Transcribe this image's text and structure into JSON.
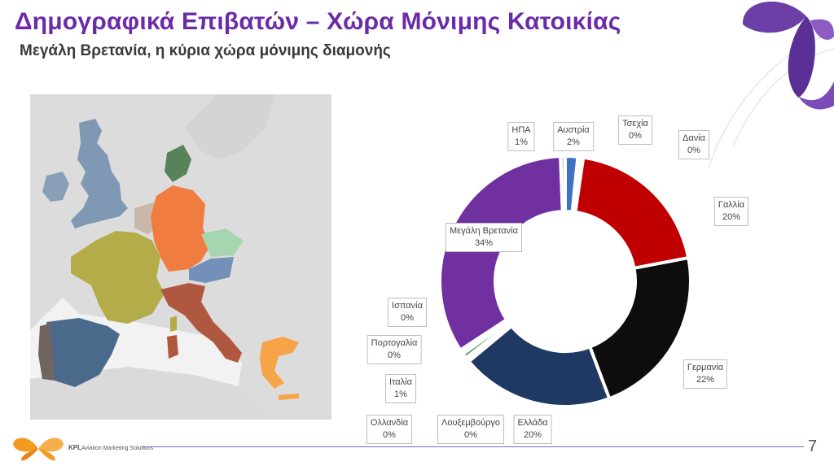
{
  "title": "Δημογραφικά Επιβατών – Χώρα Μόνιμης Κατοικίας",
  "subtitle": "Μεγάλη Βρετανία, η κύρια χώρα μόνιμης διαμονής",
  "footer": {
    "brand_bold": "KPL",
    "brand_rest": "Aviation Marketing Solutions",
    "page_number": "7"
  },
  "colors": {
    "title": "#6b2aa8",
    "accent_line": "#6b6bd6",
    "logo": "#f39a1f"
  },
  "map": {
    "countries": [
      {
        "name": "Μεγάλη Βρετανία",
        "color": "#7f98b3"
      },
      {
        "name": "Γαλλία",
        "color": "#b4ac48"
      },
      {
        "name": "Γερμανία",
        "color": "#f07c3f"
      },
      {
        "name": "Ισπανία",
        "color": "#4b6a8b"
      },
      {
        "name": "Πορτογαλία",
        "color": "#706461"
      },
      {
        "name": "Ιταλία",
        "color": "#b0583f"
      },
      {
        "name": "Ελλάδα",
        "color": "#f7a347"
      },
      {
        "name": "Τσεχία",
        "color": "#a6d6b0"
      },
      {
        "name": "Αυστρία",
        "color": "#7390b8"
      },
      {
        "name": "Δανία",
        "color": "#57825a"
      },
      {
        "name": "Ολλανδία",
        "color": "#c9b8aa"
      }
    ]
  },
  "chart_data": {
    "type": "pie",
    "donut": true,
    "title": "",
    "slices": [
      {
        "label": "Αυστρία",
        "value_text": "2%",
        "value": 1.6,
        "color": "#3f72c4"
      },
      {
        "label": "Τσεχία",
        "value_text": "0%",
        "value": 0.35,
        "color": "#f0a04b"
      },
      {
        "label": "Δανία",
        "value_text": "0%",
        "value": 0.35,
        "color": "#7a2a1a"
      },
      {
        "label": "Γαλλία",
        "value_text": "20%",
        "value": 19.6,
        "color": "#c00000"
      },
      {
        "label": "Γερμανία",
        "value_text": "22%",
        "value": 22.2,
        "color": "#0d0d0d"
      },
      {
        "label": "Ελλάδα",
        "value_text": "20%",
        "value": 19.6,
        "color": "#1f3864"
      },
      {
        "label": "Λουξεμβούργο",
        "value_text": "0%",
        "value": 0.3,
        "color": "#4a7fc0"
      },
      {
        "label": "Ολλανδία",
        "value_text": "0%",
        "value": 0.3,
        "color": "#8a8a8a"
      },
      {
        "label": "Ιταλία",
        "value_text": "1%",
        "value": 0.6,
        "color": "#4e8a5a"
      },
      {
        "label": "Πορτογαλία",
        "value_text": "0%",
        "value": 0.3,
        "color": "#2e5a8a"
      },
      {
        "label": "Ισπανία",
        "value_text": "0%",
        "value": 0.3,
        "color": "#c9c9c9"
      },
      {
        "label": "Μεγάλη Βρετανία",
        "value_text": "34%",
        "value": 33.5,
        "color": "#7030a0"
      },
      {
        "label": "ΗΠΑ",
        "value_text": "1%",
        "value": 0.6,
        "color": "#d9d9d9"
      }
    ]
  }
}
